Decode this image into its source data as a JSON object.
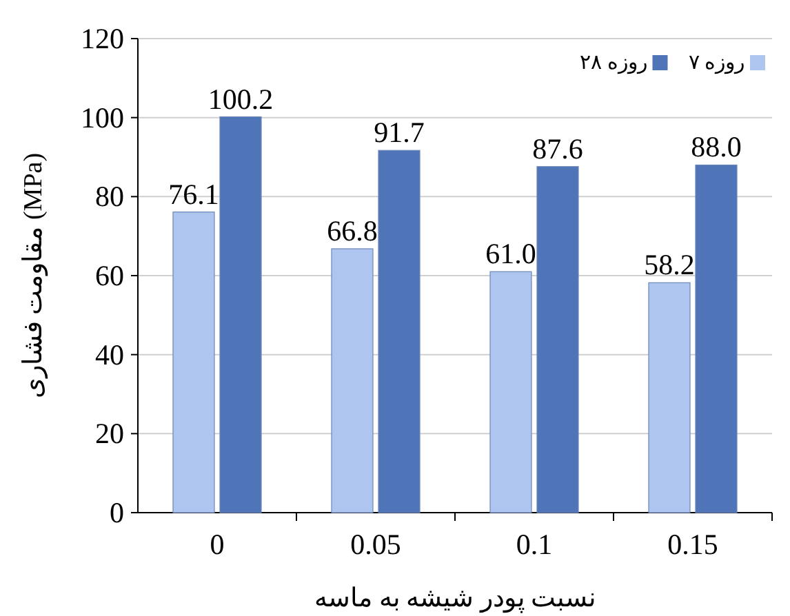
{
  "chart_data": {
    "type": "bar",
    "xlabel": "نسبت پودر شیشه به ماسه",
    "ylabel": "مقاومت فشاری (MPa)",
    "categories": [
      "0",
      "0.05",
      "0.1",
      "0.15"
    ],
    "series": [
      {
        "name": "۷ روزه",
        "color": "#aec6ef",
        "values": [
          76.1,
          66.8,
          61.0,
          58.2
        ]
      },
      {
        "name": "۲۸ روزه",
        "color": "#4f74b8",
        "values": [
          100.2,
          91.7,
          87.6,
          88.0
        ]
      }
    ],
    "value_labels": [
      [
        "76.1",
        "66.8",
        "61.0",
        "58.2"
      ],
      [
        "100.2",
        "91.7",
        "87.6",
        "88.0"
      ]
    ],
    "ylim": [
      0,
      120
    ],
    "yticks": [
      0,
      20,
      40,
      60,
      80,
      100,
      120
    ],
    "grid": "y",
    "legend": "top right"
  }
}
